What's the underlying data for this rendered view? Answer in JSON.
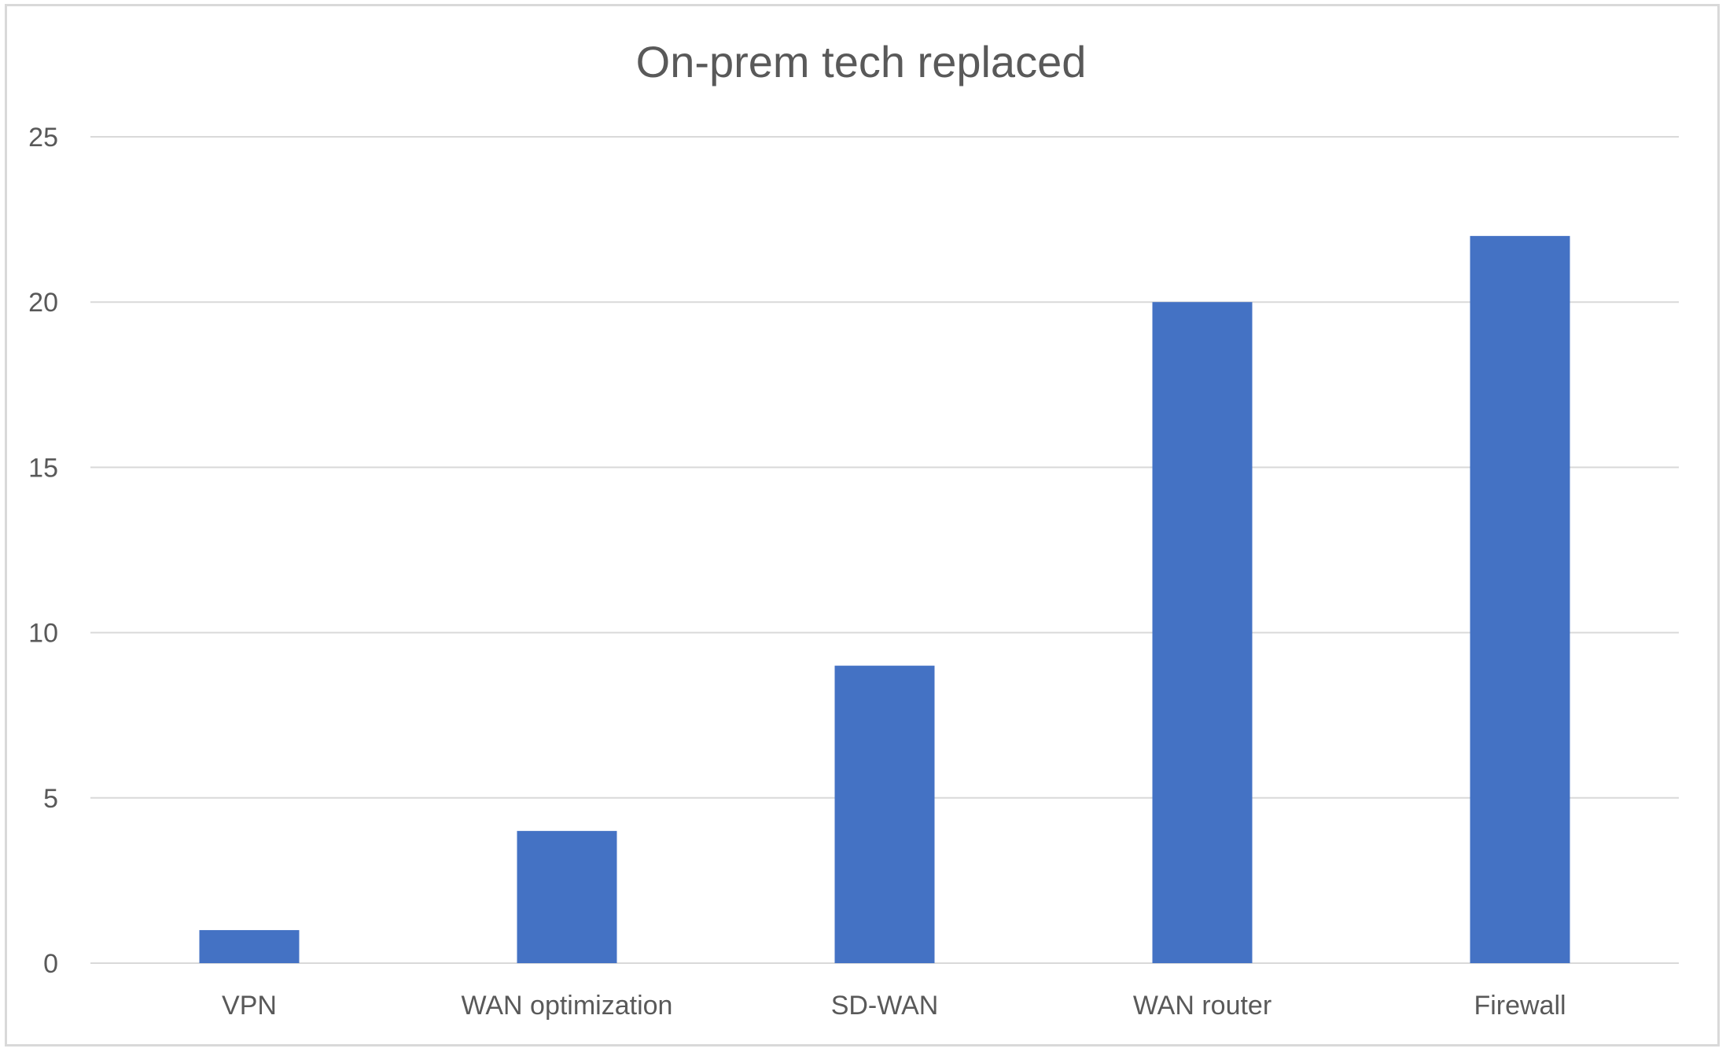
{
  "chart_data": {
    "type": "bar",
    "title": "On-prem tech replaced",
    "xlabel": "",
    "ylabel": "",
    "categories": [
      "VPN",
      "WAN optimization",
      "SD-WAN",
      "WAN router",
      "Firewall"
    ],
    "values": [
      1,
      4,
      9,
      20,
      22
    ],
    "ylim": [
      0,
      25
    ],
    "yticks": [
      0,
      5,
      10,
      15,
      20,
      25
    ],
    "grid": true,
    "legend": "none",
    "colors": {
      "bar": "#4472c4",
      "gridline": "#d9d9d9",
      "text": "#595959",
      "border": "#d9d9d9"
    }
  }
}
